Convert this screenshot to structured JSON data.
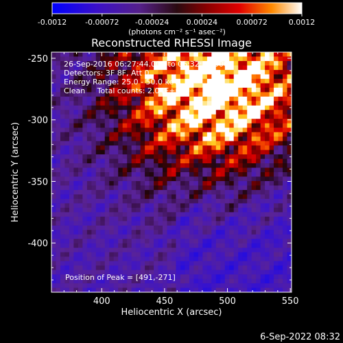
{
  "colorbar": {
    "ticks": [
      "-0.0012",
      "-0.00072",
      "-0.00024",
      "0.00024",
      "0.00072",
      "0.0012"
    ],
    "tick_values": [
      -0.0012,
      -0.00072,
      -0.00024,
      0.00024,
      0.00072,
      0.0012
    ],
    "range": [
      -0.0012,
      0.0012
    ],
    "unit_label": "(photons cm⁻² s⁻¹ asec⁻²)"
  },
  "chart_data": {
    "type": "heatmap",
    "title": "Reconstructed RHESSI Image",
    "xlabel": "Heliocentric X (arcsec)",
    "ylabel": "Heliocentric Y (arcsec)",
    "xlim": [
      360,
      551
    ],
    "ylim": [
      -440,
      -245
    ],
    "x_ticks": [
      400,
      450,
      500,
      550
    ],
    "y_ticks": [
      -250,
      -300,
      -350,
      -400
    ],
    "peak": [
      491,
      -271
    ],
    "annotations": [
      "26-Sep-2016 06:27:44.000 to 06:32:36.000",
      "Detectors: 3F 8F, Att 0",
      "Energy Range: 25.0 - 50.0 keV",
      "Clean     Total counts: 2.04E+03",
      "Position of Peak = [491,-271]"
    ],
    "colormap": "rainbow-hot: blue-purple (negative) to red-yellow-white (positive)"
  },
  "footer": {
    "timestamp": "6-Sep-2022 08:32"
  }
}
